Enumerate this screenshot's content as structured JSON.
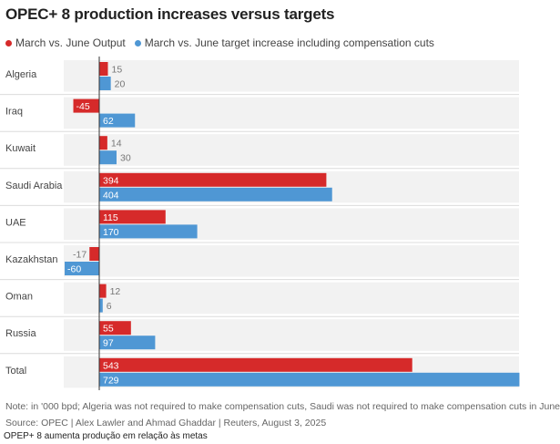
{
  "title": "OPEC+ 8 production increases versus targets",
  "colors": {
    "output": "#d62a2a",
    "target": "#4f97d4",
    "band": "#f2f2f2"
  },
  "chart_data": {
    "type": "bar",
    "orientation": "horizontal",
    "title": "OPEC+ 8 production increases versus targets",
    "categories": [
      "Algeria",
      "Iraq",
      "Kuwait",
      "Saudi Arabia",
      "UAE",
      "Kazakhstan",
      "Oman",
      "Russia",
      "Total"
    ],
    "series": [
      {
        "name": "March vs. June Output",
        "color": "#d62a2a",
        "values": [
          15,
          -45,
          14,
          394,
          115,
          -17,
          12,
          55,
          543
        ]
      },
      {
        "name": "March vs. June target increase including compensation cuts",
        "color": "#4f97d4",
        "values": [
          20,
          62,
          30,
          404,
          170,
          -60,
          6,
          97,
          729
        ]
      }
    ],
    "xlim": [
      -60,
      729
    ],
    "grid": false,
    "legend": "top-left"
  },
  "notes": {
    "note": "Note: in '000 bpd; Algeria was not required to make compensation cuts, Saudi was not required to make compensation cuts in June",
    "source": "Source: OPEC  | Alex Lawler and Ahmad Ghaddar | Reuters, August 3, 2025"
  },
  "caption": "OPEP+ 8 aumenta produção em relação às metas"
}
